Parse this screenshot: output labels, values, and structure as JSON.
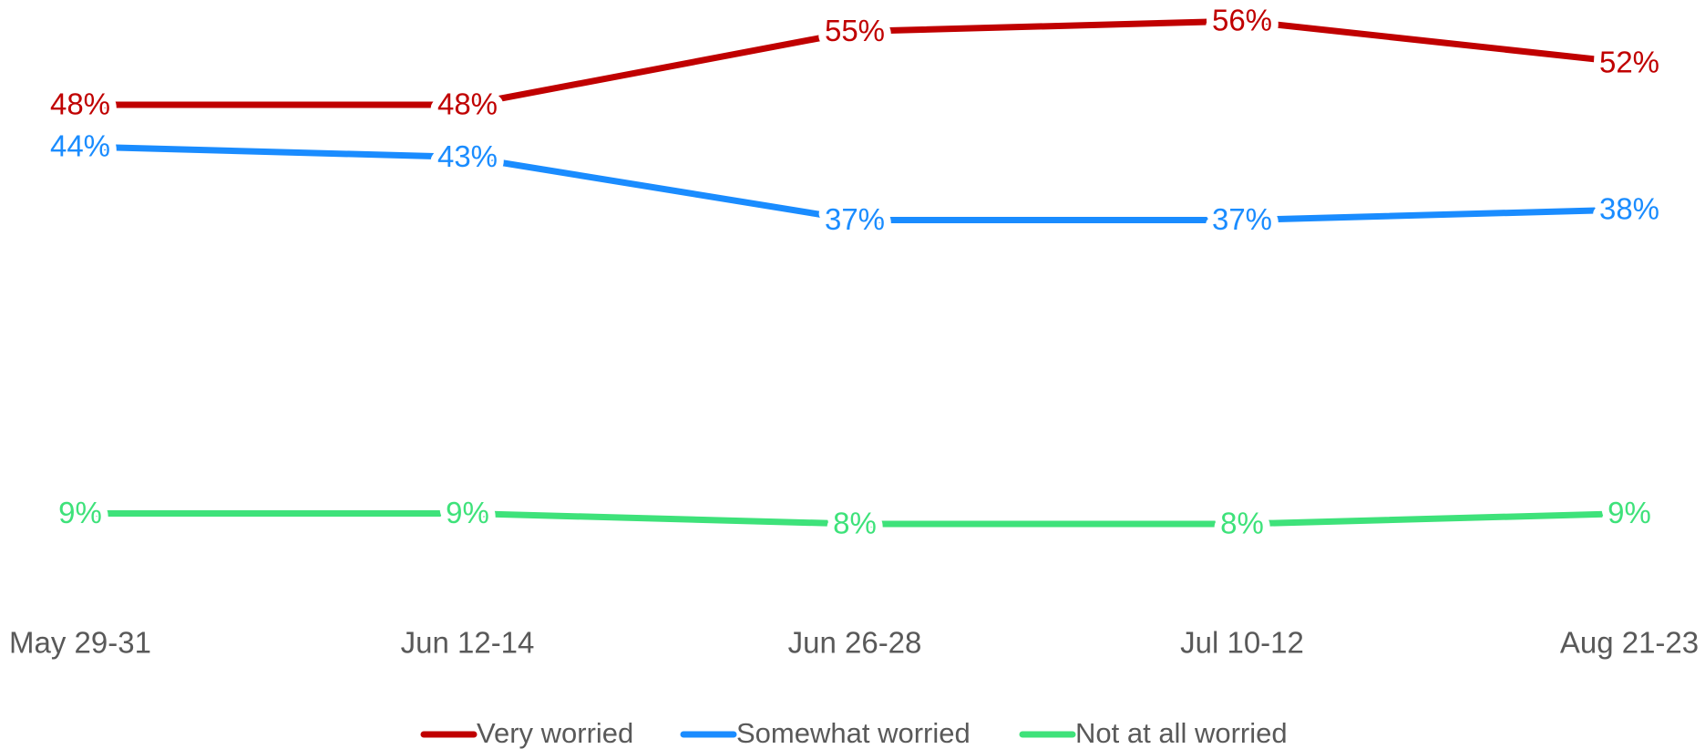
{
  "chart_data": {
    "type": "line",
    "categories": [
      "May 29-31",
      "Jun 12-14",
      "Jun 26-28",
      "Jul 10-12",
      "Aug 21-23"
    ],
    "series": [
      {
        "name": "Very worried",
        "color": "#c00000",
        "values": [
          48,
          48,
          55,
          56,
          52
        ],
        "value_labels": [
          "48%",
          "48%",
          "55%",
          "56%",
          "52%"
        ]
      },
      {
        "name": "Somewhat worried",
        "color": "#1a8cff",
        "values": [
          44,
          43,
          37,
          37,
          38
        ],
        "value_labels": [
          "44%",
          "43%",
          "37%",
          "37%",
          "38%"
        ]
      },
      {
        "name": "Not at all worried",
        "color": "#3ee27a",
        "values": [
          9,
          9,
          8,
          8,
          9
        ],
        "value_labels": [
          "9%",
          "9%",
          "8%",
          "8%",
          "9%"
        ]
      }
    ],
    "ylim": [
      0,
      58
    ],
    "grid": false,
    "legend": "bottom"
  }
}
